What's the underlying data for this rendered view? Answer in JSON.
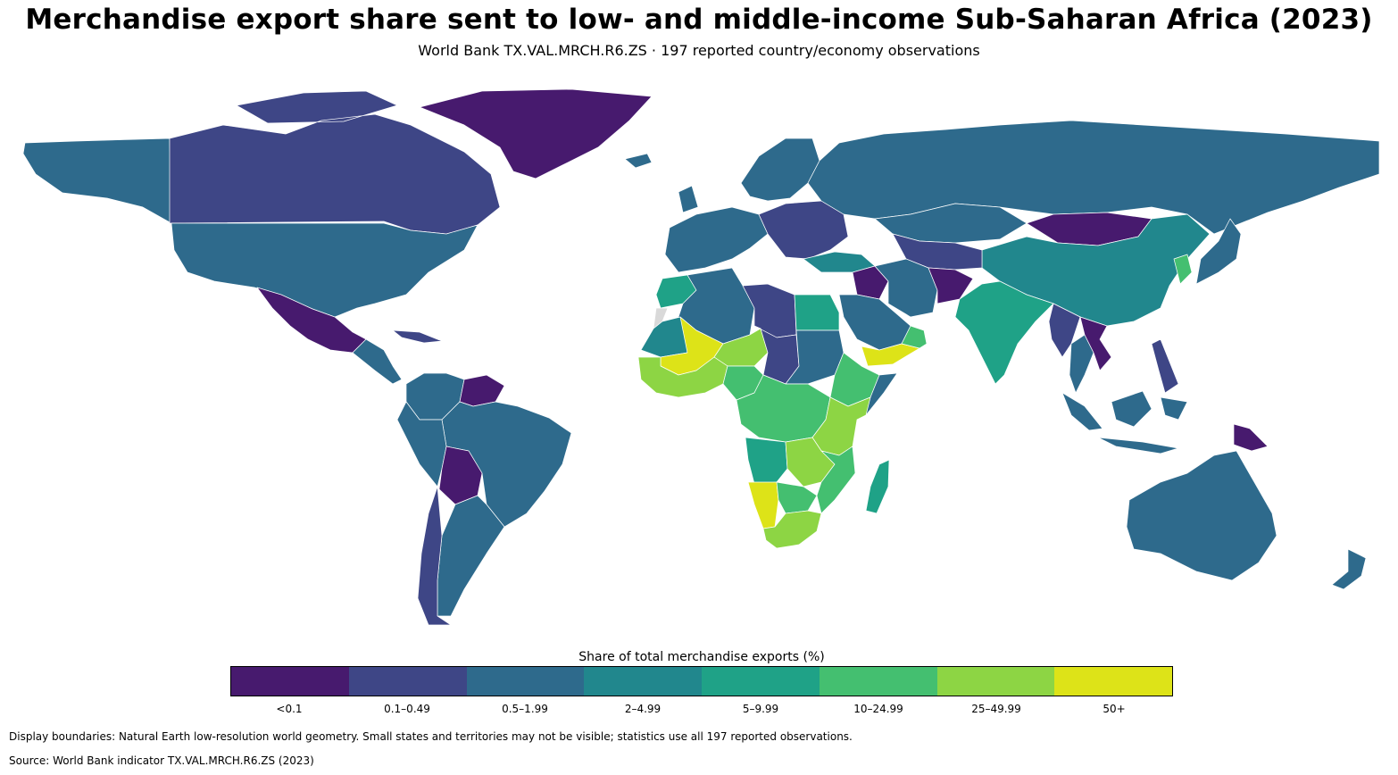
{
  "title": "Merchandise export share sent to low- and middle-income Sub-Saharan Africa (2023)",
  "subtitle": "World Bank TX.VAL.MRCH.R6.ZS · 197 reported country/economy observations",
  "legend": {
    "title": "Share of total merchandise exports (%)",
    "bins": [
      {
        "label": "<0.1",
        "color": "#471a6e"
      },
      {
        "label": "0.1–0.49",
        "color": "#3e4686"
      },
      {
        "label": "0.5–1.99",
        "color": "#2e6a8c"
      },
      {
        "label": "2–4.99",
        "color": "#21878d"
      },
      {
        "label": "5–9.99",
        "color": "#1fa287"
      },
      {
        "label": "10–24.99",
        "color": "#44bf70"
      },
      {
        "label": "25–49.99",
        "color": "#8dd544"
      },
      {
        "label": "50+",
        "color": "#dde318"
      }
    ],
    "no_data_color": "#d9d9d9"
  },
  "notes": {
    "boundaries": "Display boundaries: Natural Earth low-resolution world geometry. Small states and territories may not be visible; statistics use all 197 reported observations.",
    "source": "Source: World Bank indicator TX.VAL.MRCH.R6.ZS (2023)"
  },
  "map_data": {
    "regions": [
      {
        "name": "Canada",
        "bin": 1
      },
      {
        "name": "Alaska",
        "bin": 2
      },
      {
        "name": "United States",
        "bin": 2
      },
      {
        "name": "Greenland",
        "bin": 0
      },
      {
        "name": "Mexico",
        "bin": 0
      },
      {
        "name": "Central America",
        "bin": 2
      },
      {
        "name": "Cuba",
        "bin": 1
      },
      {
        "name": "Venezuela",
        "bin": 0
      },
      {
        "name": "Colombia",
        "bin": 2
      },
      {
        "name": "Brazil",
        "bin": 2
      },
      {
        "name": "Peru",
        "bin": 2
      },
      {
        "name": "Bolivia",
        "bin": 0
      },
      {
        "name": "Chile",
        "bin": 1
      },
      {
        "name": "Argentina",
        "bin": 2
      },
      {
        "name": "Iceland",
        "bin": 2
      },
      {
        "name": "Western Europe",
        "bin": 2
      },
      {
        "name": "Scandinavia",
        "bin": 2
      },
      {
        "name": "Eastern Europe",
        "bin": 1
      },
      {
        "name": "Russia",
        "bin": 2
      },
      {
        "name": "Kazakhstan",
        "bin": 2
      },
      {
        "name": "Mongolia",
        "bin": 0
      },
      {
        "name": "China",
        "bin": 3
      },
      {
        "name": "Turkey",
        "bin": 3
      },
      {
        "name": "Iran",
        "bin": 2
      },
      {
        "name": "Iraq",
        "bin": 0
      },
      {
        "name": "Afghanistan",
        "bin": 0
      },
      {
        "name": "Central Asia",
        "bin": 1
      },
      {
        "name": "Saudi Arabia",
        "bin": 2
      },
      {
        "name": "Yemen",
        "bin": 7
      },
      {
        "name": "Oman",
        "bin": 5
      },
      {
        "name": "India",
        "bin": 4
      },
      {
        "name": "Myanmar",
        "bin": 1
      },
      {
        "name": "Thailand",
        "bin": 2
      },
      {
        "name": "Vietnam",
        "bin": 0
      },
      {
        "name": "Korea",
        "bin": 5
      },
      {
        "name": "Japan",
        "bin": 2
      },
      {
        "name": "Philippines",
        "bin": 1
      },
      {
        "name": "Indonesia",
        "bin": 2
      },
      {
        "name": "Papua New Guinea",
        "bin": 0
      },
      {
        "name": "Australia",
        "bin": 2
      },
      {
        "name": "New Zealand",
        "bin": 2
      },
      {
        "name": "Morocco",
        "bin": 4
      },
      {
        "name": "Algeria",
        "bin": 2
      },
      {
        "name": "Libya",
        "bin": 1
      },
      {
        "name": "Egypt",
        "bin": 4
      },
      {
        "name": "Mauritania",
        "bin": 3
      },
      {
        "name": "Mali",
        "bin": 7
      },
      {
        "name": "Niger",
        "bin": 6
      },
      {
        "name": "Chad",
        "bin": 1
      },
      {
        "name": "Sudan",
        "bin": 2
      },
      {
        "name": "West Africa coast",
        "bin": 6
      },
      {
        "name": "Nigeria",
        "bin": 5
      },
      {
        "name": "Central Africa",
        "bin": 5
      },
      {
        "name": "Ethiopia",
        "bin": 5
      },
      {
        "name": "Somalia",
        "bin": 2
      },
      {
        "name": "East Africa",
        "bin": 6
      },
      {
        "name": "Angola",
        "bin": 4
      },
      {
        "name": "Zambia",
        "bin": 6
      },
      {
        "name": "Namibia",
        "bin": 7
      },
      {
        "name": "Botswana",
        "bin": 5
      },
      {
        "name": "Mozambique",
        "bin": 5
      },
      {
        "name": "South Africa",
        "bin": 6
      },
      {
        "name": "Madagascar",
        "bin": 4
      },
      {
        "name": "Western Sahara",
        "bin": -1
      }
    ]
  }
}
